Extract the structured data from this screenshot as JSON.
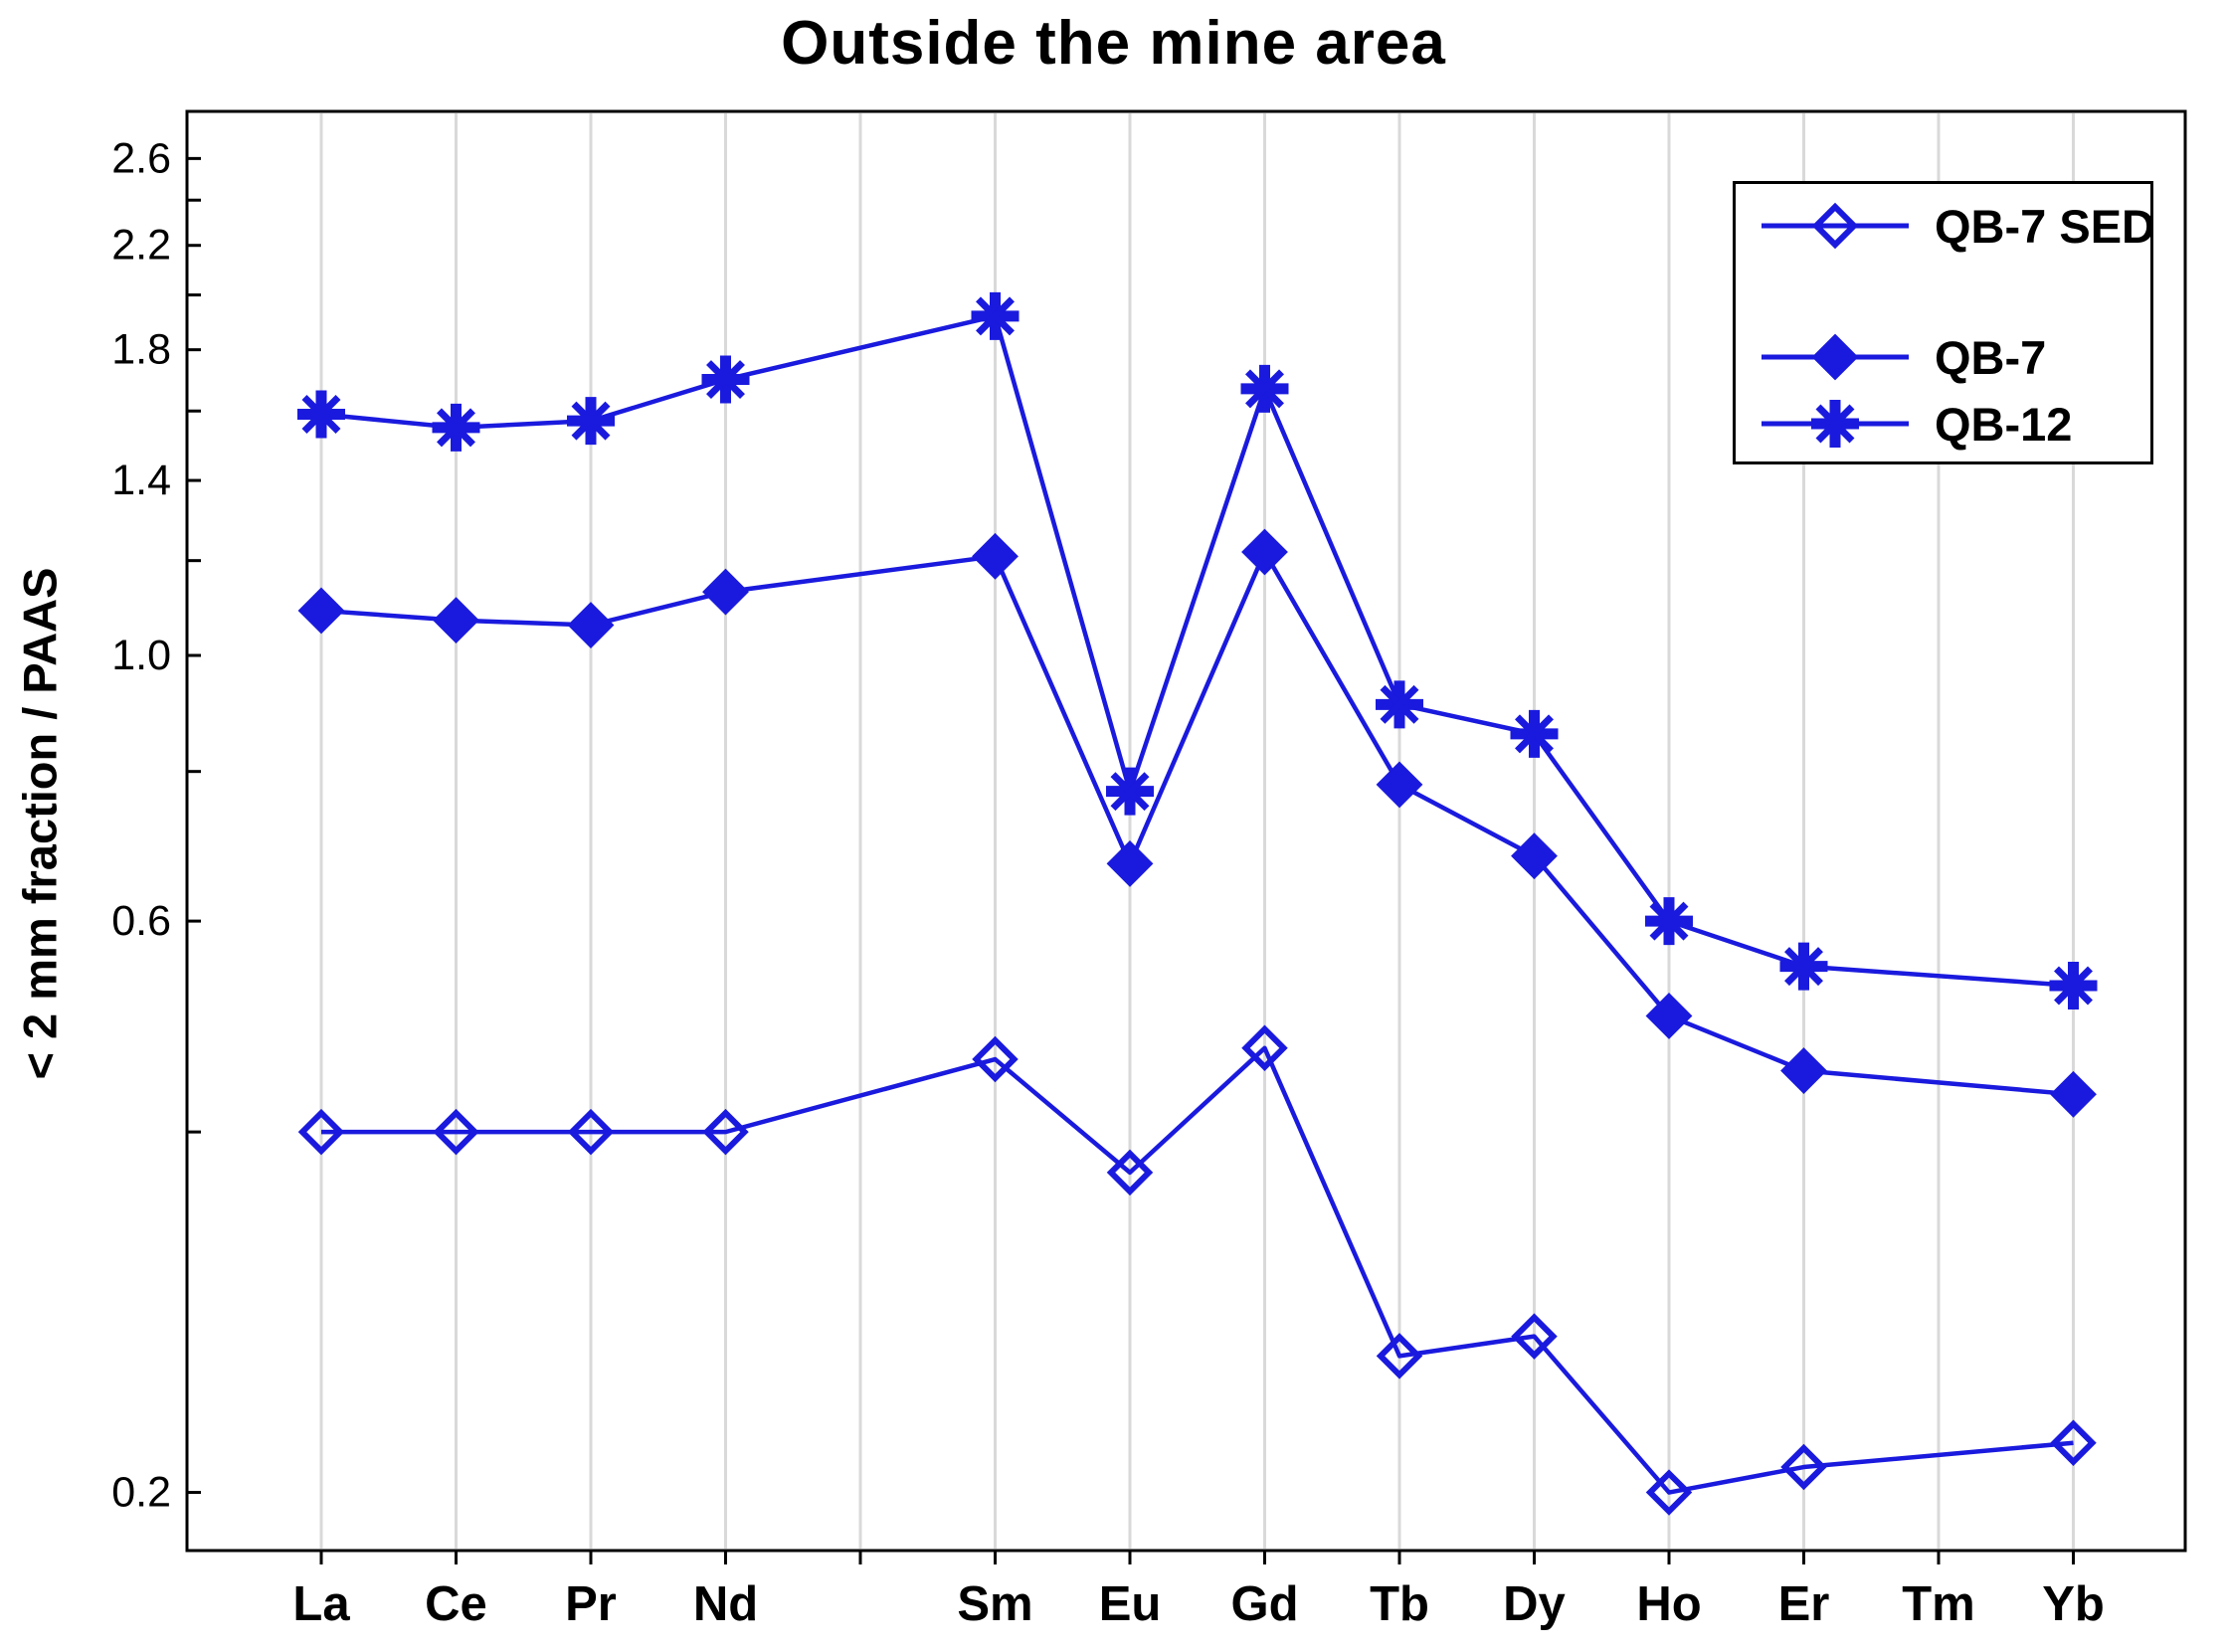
{
  "title": "Outside the mine area",
  "y_axis": {
    "label": "< 2 mm fraction / PAAS",
    "scale": "log",
    "tick_labels": [
      2.6,
      2.2,
      1.8,
      1.4,
      1.0,
      0.6,
      0.2
    ],
    "minor_ticks": [
      2.4,
      2.0,
      1.6,
      1.2,
      0.8,
      0.4
    ]
  },
  "x_axis": {
    "tick_labels": [
      "La",
      "Ce",
      "Pr",
      "Nd",
      "Sm",
      "Eu",
      "Gd",
      "Tb",
      "Dy",
      "Ho",
      "Er",
      "Tm",
      "Yb"
    ]
  },
  "legend": {
    "position": "top-right",
    "items": [
      {
        "label": "QB-7 SED",
        "marker": "open-diamond"
      },
      {
        "label": "QB-7",
        "marker": "filled-diamond"
      },
      {
        "label": "QB-12",
        "marker": "asterisk"
      }
    ]
  },
  "colors": {
    "series_blue": "#1a1ade",
    "grid": "#d9d9d9",
    "axis": "#000000",
    "background": "#ffffff",
    "text": "#000000"
  },
  "chart_data": {
    "type": "line",
    "title": "Outside the mine area",
    "xlabel": "",
    "ylabel": "< 2 mm fraction / PAAS",
    "y_scale": "log",
    "ylim": [
      0.18,
      2.85
    ],
    "grid": "vertical-only",
    "legend_position": "top-right",
    "categories": [
      "La",
      "Ce",
      "Pr",
      "Nd",
      "",
      "Sm",
      "Eu",
      "Gd",
      "Tb",
      "Dy",
      "Ho",
      "Er",
      "Tm",
      "Yb"
    ],
    "series": [
      {
        "name": "QB-7 SED",
        "marker": "open-diamond",
        "values": [
          0.4,
          0.4,
          0.4,
          0.4,
          null,
          0.46,
          0.37,
          0.47,
          0.26,
          0.27,
          0.2,
          0.21,
          null,
          0.22
        ]
      },
      {
        "name": "QB-7",
        "marker": "filled-diamond",
        "values": [
          1.09,
          1.07,
          1.06,
          1.13,
          null,
          1.21,
          0.67,
          1.22,
          0.78,
          0.68,
          0.5,
          0.45,
          null,
          0.43
        ]
      },
      {
        "name": "QB-12",
        "marker": "asterisk",
        "values": [
          1.59,
          1.55,
          1.57,
          1.7,
          null,
          1.92,
          0.77,
          1.67,
          0.91,
          0.86,
          0.6,
          0.55,
          null,
          0.53
        ]
      }
    ]
  }
}
